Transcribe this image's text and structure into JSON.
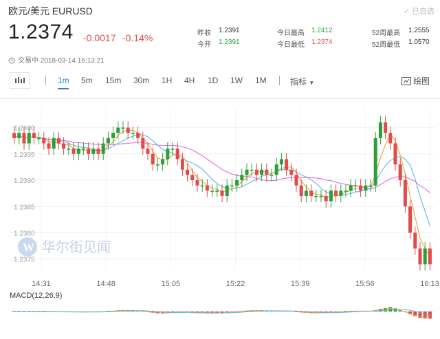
{
  "header": {
    "title": "欧元/美元 EURUSD",
    "subscribe_label": "已自选"
  },
  "quote": {
    "price": "1.2374",
    "change": "-0.0017",
    "change_pct": "-0.14%"
  },
  "stats": [
    {
      "label": "昨收",
      "value": "1.2391",
      "color": "#333333"
    },
    {
      "label": "今开",
      "value": "1.2391",
      "color": "#2e9e3a"
    },
    {
      "label": "今日最高",
      "value": "1.2412",
      "color": "#2e9e3a"
    },
    {
      "label": "今日最低",
      "value": "1.2374",
      "color": "#e24b4b"
    },
    {
      "label": "52周最高",
      "value": "1.2555",
      "color": "#333333"
    },
    {
      "label": "52周最低",
      "value": "1.0570",
      "color": "#333333"
    }
  ],
  "status": {
    "icon": "clock-icon",
    "text": "交易中 2018-03-14 16:13:21"
  },
  "toolbar": {
    "chart_type_icon": "candlestick-icon",
    "timeframes": [
      "1m",
      "5m",
      "15m",
      "30m",
      "1H",
      "4H",
      "1D",
      "1W",
      "1M"
    ],
    "active_timeframe": "1m",
    "indicator_label": "指标",
    "draw_label": "绘图",
    "draw_icon": "draw-icon"
  },
  "watermark": {
    "logo_letter": "W",
    "text": "华尔街见闻"
  },
  "macd": {
    "label": "MACD(12,26,9)"
  },
  "colors": {
    "up": "#2e9e3a",
    "down": "#e24b4b",
    "accent": "#2b7de0",
    "ma_pink": "#e86bd6",
    "ma_blue": "#5bb8e8",
    "ma_orange": "#f2a03d"
  },
  "chart_data": {
    "type": "candlestick",
    "y_ticks": [
      "1.2400",
      "1.2395",
      "1.2390",
      "1.2385",
      "1.2380",
      "1.2375"
    ],
    "ylim": [
      1.2373,
      1.2404
    ],
    "x_ticks": [
      "14:31",
      "14:48",
      "15:05",
      "15:22",
      "15:39",
      "15:56",
      "16:13"
    ],
    "candles_close": [
      1.2398,
      1.2399,
      1.2397,
      1.2399,
      1.2398,
      1.2398,
      1.2397,
      1.2396,
      1.2398,
      1.2397,
      1.2396,
      1.2396,
      1.2395,
      1.2396,
      1.2396,
      1.2395,
      1.2396,
      1.2395,
      1.2397,
      1.2398,
      1.2399,
      1.24,
      1.24,
      1.2399,
      1.2399,
      1.2398,
      1.2396,
      1.2395,
      1.2393,
      1.2393,
      1.2394,
      1.2396,
      1.2396,
      1.2394,
      1.2392,
      1.2391,
      1.239,
      1.2389,
      1.2389,
      1.2388,
      1.2388,
      1.2388,
      1.2387,
      1.2389,
      1.2389,
      1.239,
      1.2391,
      1.2392,
      1.2392,
      1.2391,
      1.2392,
      1.2391,
      1.2391,
      1.2393,
      1.2394,
      1.2392,
      1.2391,
      1.2389,
      1.2387,
      1.2388,
      1.2387,
      1.2387,
      1.2387,
      1.2386,
      1.2388,
      1.2387,
      1.2388,
      1.2388,
      1.2389,
      1.2389,
      1.2388,
      1.2389,
      1.2389,
      1.2398,
      1.2401,
      1.2399,
      1.2397,
      1.2393,
      1.239,
      1.2385,
      1.238,
      1.2377,
      1.2374,
      1.2377,
      1.2374
    ]
  }
}
